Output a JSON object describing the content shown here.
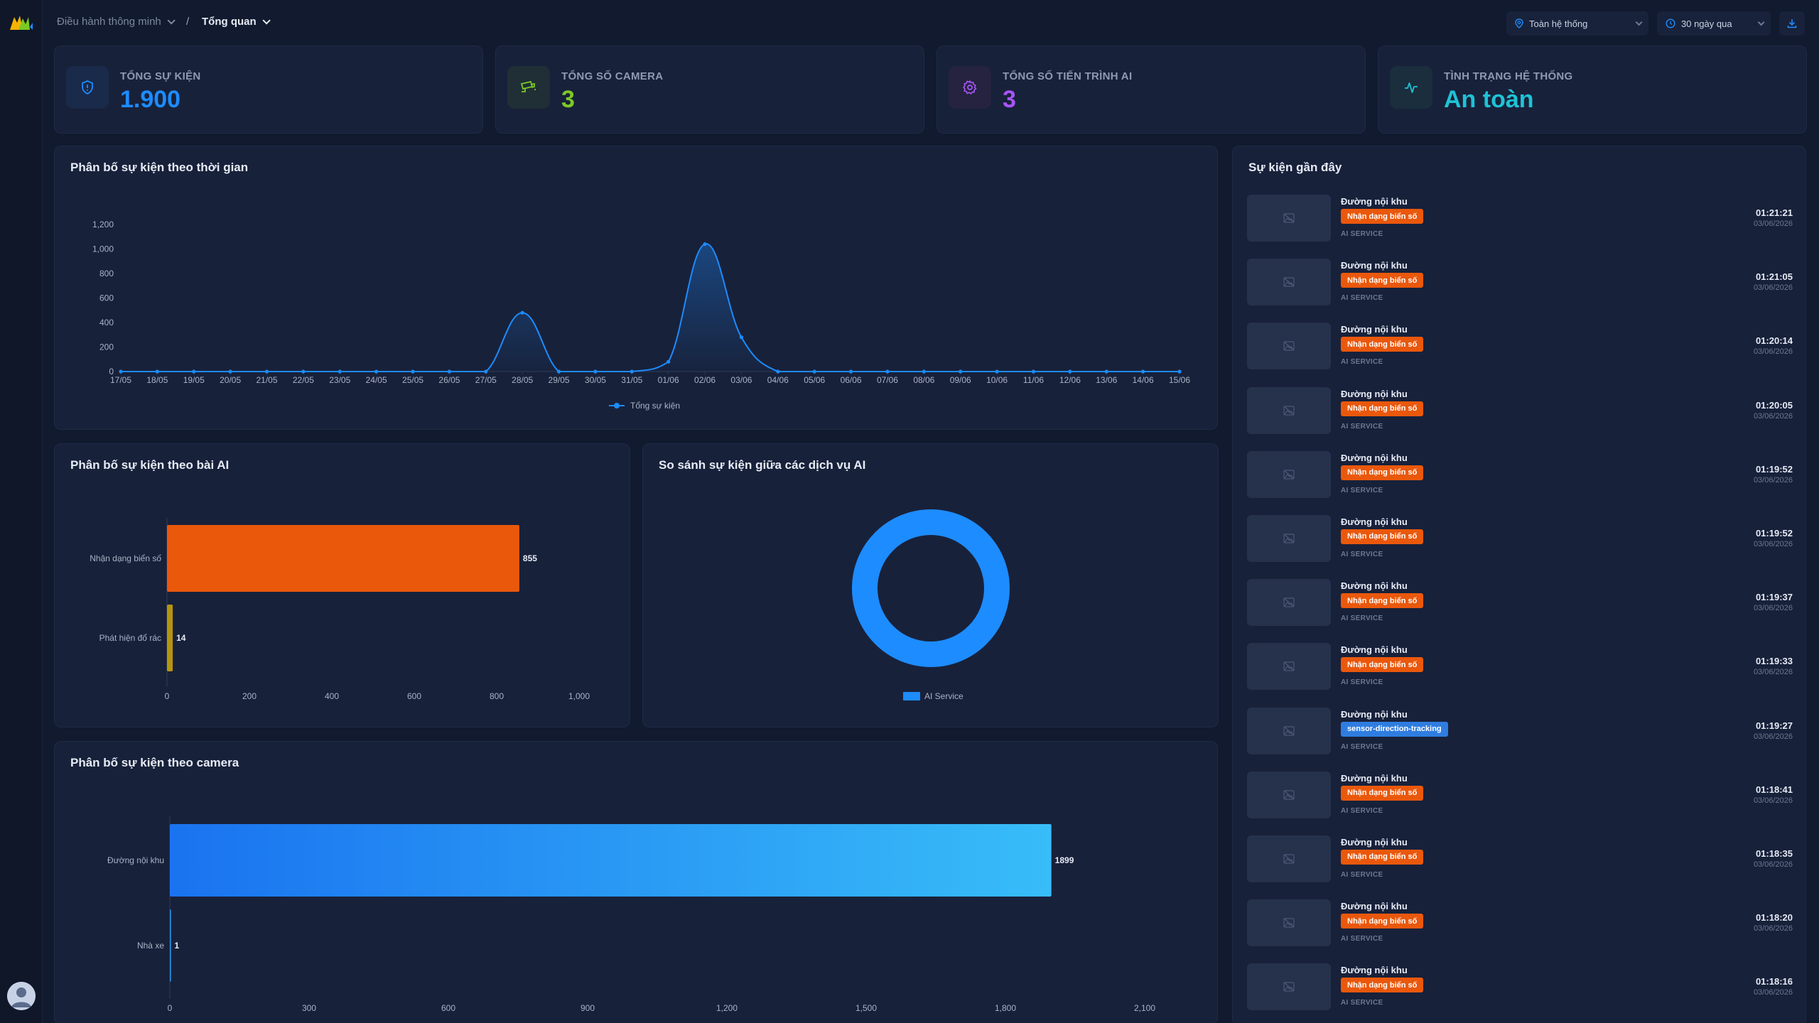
{
  "colors": {
    "accent": "#1d8cff",
    "orange": "#ea580c",
    "yellow": "#b59410",
    "purple": "#a855f7",
    "green": "#7cc924",
    "cyan": "#1ec3d6"
  },
  "breadcrumb": {
    "item1": "Điều hành thông minh",
    "item2": "Tổng quan"
  },
  "filters": {
    "scope": "Toàn hệ thống",
    "range": "30 ngày qua"
  },
  "stats": [
    {
      "label": "TỔNG SỰ KIỆN",
      "value": "1.900",
      "icon": "shield-icon",
      "color": "#1d8cff"
    },
    {
      "label": "TỔNG SỐ CAMERA",
      "value": "3",
      "icon": "camera-icon",
      "color": "#7cc924"
    },
    {
      "label": "TỔNG SỐ TIẾN TRÌNH AI",
      "value": "3",
      "icon": "gear-icon",
      "color": "#a855f7"
    },
    {
      "label": "TÌNH TRẠNG HỆ THỐNG",
      "value": "An toàn",
      "icon": "activity-icon",
      "color": "#1ec3d6"
    }
  ],
  "time_panel": {
    "title": "Phân bố sự kiện theo thời gian"
  },
  "ai_panel": {
    "title": "Phân bố sự kiện theo bài AI"
  },
  "service_panel": {
    "title": "So sánh sự kiện giữa các dịch vụ AI"
  },
  "camera_panel": {
    "title": "Phân bố sự kiện theo camera"
  },
  "recent_panel": {
    "title": "Sự kiện gần đây"
  },
  "chart_data": [
    {
      "type": "line",
      "x": [
        "17/05",
        "18/05",
        "19/05",
        "20/05",
        "21/05",
        "22/05",
        "23/05",
        "24/05",
        "25/05",
        "26/05",
        "27/05",
        "28/05",
        "29/05",
        "30/05",
        "31/05",
        "01/06",
        "02/06",
        "03/06",
        "04/06",
        "05/06",
        "06/06",
        "07/06",
        "08/06",
        "09/06",
        "10/06",
        "11/06",
        "12/06",
        "13/06",
        "14/06",
        "15/06"
      ],
      "series": [
        {
          "name": "Tổng sự kiện",
          "values": [
            0,
            0,
            0,
            0,
            0,
            0,
            0,
            0,
            0,
            0,
            0,
            480,
            0,
            0,
            0,
            80,
            1040,
            280,
            0,
            0,
            0,
            0,
            0,
            0,
            0,
            0,
            0,
            0,
            0,
            0
          ]
        }
      ],
      "ylim": [
        0,
        1200
      ],
      "yticks": [
        "0",
        "200",
        "400",
        "600",
        "800",
        "1,000",
        "1,200"
      ],
      "legend": "bottom"
    },
    {
      "type": "bar",
      "orientation": "horizontal",
      "categories": [
        "Nhận dạng biển số",
        "Phát hiện đổ rác"
      ],
      "values": [
        855,
        14
      ],
      "colors": [
        "#ea580c",
        "#b59410"
      ],
      "xlim": [
        0,
        1000
      ],
      "xticks": [
        "0",
        "200",
        "400",
        "600",
        "800",
        "1,000"
      ]
    },
    {
      "type": "pie",
      "style": "donut",
      "series": [
        {
          "name": "AI Service",
          "values": [
            1900
          ]
        }
      ],
      "legend": "bottom"
    },
    {
      "type": "bar",
      "orientation": "horizontal",
      "categories": [
        "Đường nội khu",
        "Nhà xe"
      ],
      "values": [
        1899,
        1
      ],
      "xlim": [
        0,
        2100
      ],
      "xticks": [
        "0",
        "300",
        "600",
        "900",
        "1,200",
        "1,500",
        "1,800",
        "2,100"
      ]
    }
  ],
  "events": [
    {
      "location": "Đường nội khu",
      "tag": "Nhận dạng biển số",
      "tag_color": "#ea580c",
      "source": "AI SERVICE",
      "time": "01:21:21",
      "date": "03/06/2026"
    },
    {
      "location": "Đường nội khu",
      "tag": "Nhận dạng biển số",
      "tag_color": "#ea580c",
      "source": "AI SERVICE",
      "time": "01:21:05",
      "date": "03/06/2026"
    },
    {
      "location": "Đường nội khu",
      "tag": "Nhận dạng biển số",
      "tag_color": "#ea580c",
      "source": "AI SERVICE",
      "time": "01:20:14",
      "date": "03/06/2026"
    },
    {
      "location": "Đường nội khu",
      "tag": "Nhận dạng biển số",
      "tag_color": "#ea580c",
      "source": "AI SERVICE",
      "time": "01:20:05",
      "date": "03/06/2026"
    },
    {
      "location": "Đường nội khu",
      "tag": "Nhận dạng biển số",
      "tag_color": "#ea580c",
      "source": "AI SERVICE",
      "time": "01:19:52",
      "date": "03/06/2026"
    },
    {
      "location": "Đường nội khu",
      "tag": "Nhận dạng biển số",
      "tag_color": "#ea580c",
      "source": "AI SERVICE",
      "time": "01:19:52",
      "date": "03/06/2026"
    },
    {
      "location": "Đường nội khu",
      "tag": "Nhận dạng biển số",
      "tag_color": "#ea580c",
      "source": "AI SERVICE",
      "time": "01:19:37",
      "date": "03/06/2026"
    },
    {
      "location": "Đường nội khu",
      "tag": "Nhận dạng biển số",
      "tag_color": "#ea580c",
      "source": "AI SERVICE",
      "time": "01:19:33",
      "date": "03/06/2026"
    },
    {
      "location": "Đường nội khu",
      "tag": "sensor-direction-tracking",
      "tag_color": "#2f7de1",
      "source": "AI SERVICE",
      "time": "01:19:27",
      "date": "03/06/2026"
    },
    {
      "location": "Đường nội khu",
      "tag": "Nhận dạng biển số",
      "tag_color": "#ea580c",
      "source": "AI SERVICE",
      "time": "01:18:41",
      "date": "03/06/2026"
    },
    {
      "location": "Đường nội khu",
      "tag": "Nhận dạng biển số",
      "tag_color": "#ea580c",
      "source": "AI SERVICE",
      "time": "01:18:35",
      "date": "03/06/2026"
    },
    {
      "location": "Đường nội khu",
      "tag": "Nhận dạng biển số",
      "tag_color": "#ea580c",
      "source": "AI SERVICE",
      "time": "01:18:20",
      "date": "03/06/2026"
    },
    {
      "location": "Đường nội khu",
      "tag": "Nhận dạng biển số",
      "tag_color": "#ea580c",
      "source": "AI SERVICE",
      "time": "01:18:16",
      "date": "03/06/2026"
    }
  ]
}
